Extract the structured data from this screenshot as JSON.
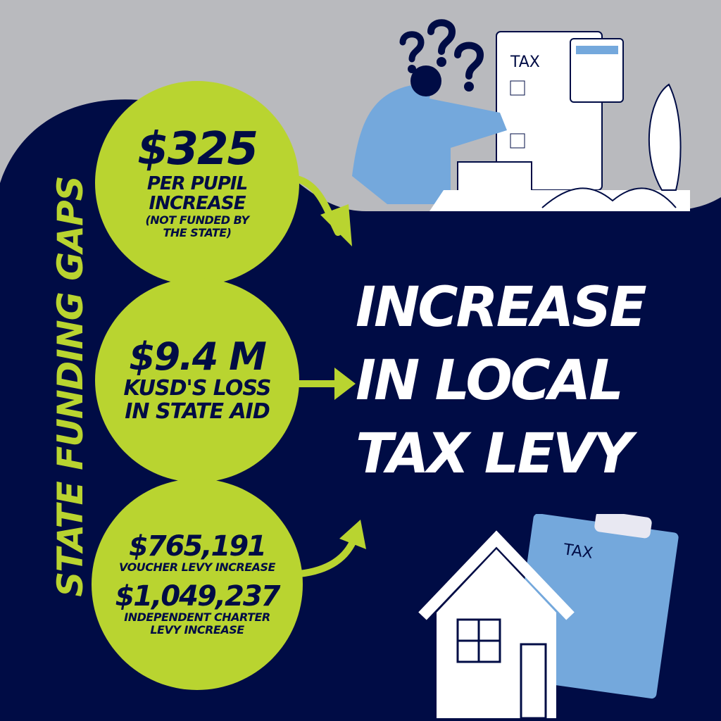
{
  "colors": {
    "navy": "#000c45",
    "lime": "#b9d430",
    "gray": "#b9babe",
    "blue": "#74a8dc"
  },
  "side_title": "STATE FUNDING GAPS",
  "circles": [
    {
      "amount": "$325",
      "line1": "PER PUPIL",
      "line2": "INCREASE",
      "note1": "(NOT FUNDED BY",
      "note2": "THE STATE)"
    },
    {
      "amount": "$9.4 M",
      "line1": "KUSD'S LOSS",
      "line2": "IN STATE AID"
    },
    {
      "amount1": "$765,191",
      "label1": "VOUCHER LEVY INCREASE",
      "amount2": "$1,049,237",
      "label2a": "INDEPENDENT CHARTER",
      "label2b": "LEVY INCREASE"
    }
  ],
  "headline": {
    "line1": "INCREASE",
    "line2": "IN LOCAL",
    "line3": "TAX LEVY"
  },
  "illustrations": {
    "form_label_top": "TAX",
    "form_label_bottom": "TAX"
  }
}
